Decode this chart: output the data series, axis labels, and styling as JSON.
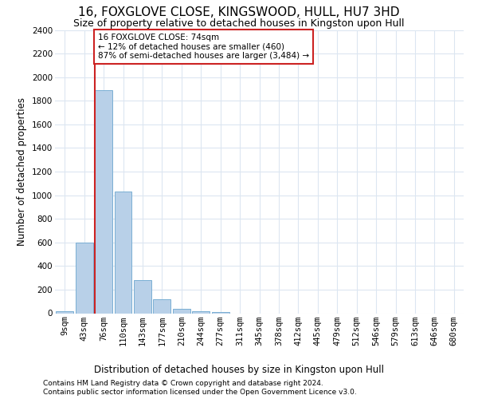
{
  "title": "16, FOXGLOVE CLOSE, KINGSWOOD, HULL, HU7 3HD",
  "subtitle": "Size of property relative to detached houses in Kingston upon Hull",
  "xlabel_bottom": "Distribution of detached houses by size in Kingston upon Hull",
  "ylabel": "Number of detached properties",
  "footnote1": "Contains HM Land Registry data © Crown copyright and database right 2024.",
  "footnote2": "Contains public sector information licensed under the Open Government Licence v3.0.",
  "categories": [
    "9sqm",
    "43sqm",
    "76sqm",
    "110sqm",
    "143sqm",
    "177sqm",
    "210sqm",
    "244sqm",
    "277sqm",
    "311sqm",
    "345sqm",
    "378sqm",
    "412sqm",
    "445sqm",
    "479sqm",
    "512sqm",
    "546sqm",
    "579sqm",
    "613sqm",
    "646sqm",
    "680sqm"
  ],
  "values": [
    20,
    600,
    1890,
    1030,
    280,
    120,
    40,
    20,
    10,
    0,
    0,
    0,
    0,
    0,
    0,
    0,
    0,
    0,
    0,
    0,
    0
  ],
  "bar_color": "#b8d0e8",
  "bar_edge_color": "#7aafd4",
  "highlight_color": "#cc2222",
  "annotation_text": "16 FOXGLOVE CLOSE: 74sqm\n← 12% of detached houses are smaller (460)\n87% of semi-detached houses are larger (3,484) →",
  "annotation_box_color": "#cc2222",
  "ylim": [
    0,
    2400
  ],
  "yticks": [
    0,
    200,
    400,
    600,
    800,
    1000,
    1200,
    1400,
    1600,
    1800,
    2000,
    2200,
    2400
  ],
  "bg_color": "#ffffff",
  "grid_color": "#dce6f1",
  "title_fontsize": 11,
  "subtitle_fontsize": 9,
  "axis_fontsize": 8.5,
  "tick_fontsize": 7.5,
  "footnote_fontsize": 6.5
}
